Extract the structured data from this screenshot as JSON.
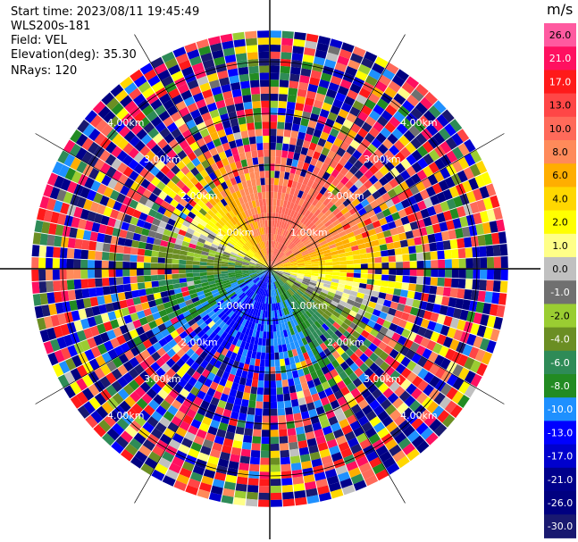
{
  "header": {
    "start_time": "Start time: 2023/08/11 19:45:49",
    "instrument": "WLS200s-181",
    "field": "Field: VEL",
    "elevation": "Elevation(deg): 35.30",
    "nrays": "NRays: 120"
  },
  "chart_data": {
    "type": "heatmap",
    "projection": "polar-ppi",
    "field": "VEL",
    "unit": "m/s",
    "n_rays": 120,
    "range_rings_km": [
      1.0,
      2.0,
      3.0,
      4.0
    ],
    "ring_labels": [
      "1.00km",
      "2.00km",
      "3.00km",
      "4.00km"
    ],
    "max_range_km": 4.6,
    "colorbar": {
      "label": "m/s",
      "ticks": [
        "26.0",
        "21.0",
        "17.0",
        "13.0",
        "10.0",
        "8.0",
        "6.0",
        "4.0",
        "2.0",
        "1.0",
        "0.0",
        "-1.0",
        "-2.0",
        "-4.0",
        "-6.0",
        "-8.0",
        "-10.0",
        "-13.0",
        "-17.0",
        "-21.0",
        "-26.0",
        "-30.0"
      ],
      "colors": [
        "#ff5aa0",
        "#ff1060",
        "#ff1a1a",
        "#ff4646",
        "#ff6a5a",
        "#ff8a5a",
        "#ffae00",
        "#ffd700",
        "#ffff00",
        "#ffff88",
        "#c0c0c0",
        "#707070",
        "#9acd32",
        "#6b8e23",
        "#2e8b57",
        "#228b22",
        "#1e90ff",
        "#0000ff",
        "#0000cd",
        "#00008b",
        "#000080",
        "#191970"
      ]
    }
  }
}
